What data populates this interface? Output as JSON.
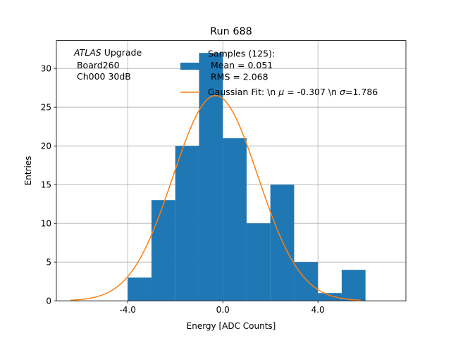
{
  "chart_data": {
    "type": "bar",
    "title": "Run 688",
    "xlabel": "Energy [ADC Counts]",
    "ylabel": "Entries",
    "xlim": [
      -7.0,
      7.7
    ],
    "ylim": [
      0,
      33.6
    ],
    "grid": true,
    "x_ticks": [
      -4.0,
      0.0,
      4.0
    ],
    "x_tick_labels": [
      "-4.0",
      "0.0",
      "4.0"
    ],
    "y_ticks": [
      0,
      5,
      10,
      15,
      20,
      25,
      30
    ],
    "y_tick_labels": [
      "0",
      "5",
      "10",
      "15",
      "20",
      "25",
      "30"
    ],
    "histogram": {
      "name": "Samples (125):\n Mean = 0.051\n RMS = 2.068",
      "color": "#1f77b4",
      "bin_edges": [
        -4.0,
        -3.0,
        -2.0,
        -1.0,
        0.0,
        1.0,
        2.0,
        3.0,
        4.0,
        5.0,
        6.0
      ],
      "counts": [
        3,
        13,
        20,
        32,
        21,
        10,
        15,
        5,
        1,
        4
      ]
    },
    "fit": {
      "name": "Gaussian Fit: \\n $\\mu$ = -0.307 \\n $\\sigma$=1.786",
      "color": "#ff7f0e",
      "mu": -0.307,
      "sigma": 1.786,
      "amplitude": 26.5,
      "x_range": [
        -6.4,
        5.8
      ]
    },
    "annotation": {
      "italic": "ATLAS",
      "rest": " Upgrade",
      "line2": " Board260",
      "line3": " Ch000 30dB"
    },
    "legend": {
      "location": "top-right",
      "hist_lines": [
        "Samples (125):",
        " Mean = 0.051",
        " RMS = 2.068"
      ],
      "fit_prefix": "Gaussian Fit: \\n ",
      "fit_mu_symbol": "μ",
      "fit_middle": " = -0.307 \\n ",
      "fit_sigma_symbol": "σ",
      "fit_suffix": "=1.786"
    }
  }
}
